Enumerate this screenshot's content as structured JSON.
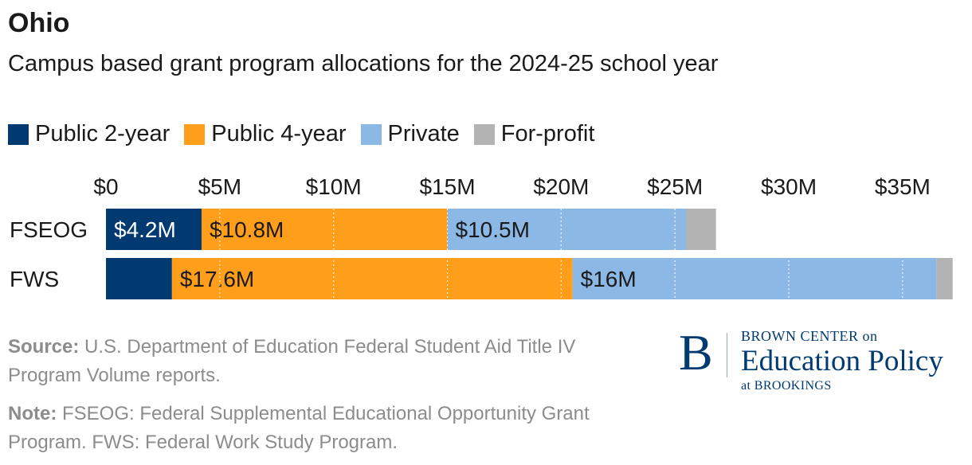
{
  "header": {
    "title": "Ohio",
    "subtitle": "Campus based grant program allocations for the 2024-25 school year"
  },
  "legend": {
    "items": [
      {
        "label": "Public 2-year",
        "color": "#003a70"
      },
      {
        "label": "Public 4-year",
        "color": "#ff9e1b"
      },
      {
        "label": "Private",
        "color": "#8cb8e6"
      },
      {
        "label": "For-profit",
        "color": "#b3b3b3"
      }
    ]
  },
  "chart_data": {
    "type": "bar",
    "orientation": "horizontal",
    "stacked": true,
    "title": "Ohio",
    "subtitle": "Campus based grant program allocations for the 2024-25 school year",
    "categories": [
      "FSEOG",
      "FWS"
    ],
    "series": [
      {
        "name": "Public 2-year",
        "color": "#003a70",
        "values": [
          4.2,
          2.9
        ],
        "labels": [
          "$4.2M",
          ""
        ],
        "label_color": "#ffffff"
      },
      {
        "name": "Public 4-year",
        "color": "#ff9e1b",
        "values": [
          10.8,
          17.6
        ],
        "labels": [
          "$10.8M",
          "$17.6M"
        ],
        "label_color": "#1a1a1a"
      },
      {
        "name": "Private",
        "color": "#8cb8e6",
        "values": [
          10.5,
          16.0
        ],
        "labels": [
          "$10.5M",
          "$16M"
        ],
        "label_color": "#1a1a1a"
      },
      {
        "name": "For-profit",
        "color": "#b3b3b3",
        "values": [
          1.3,
          0.7
        ],
        "labels": [
          "",
          ""
        ],
        "label_color": "#1a1a1a"
      }
    ],
    "xlim": [
      0,
      37
    ],
    "x_ticks": [
      0,
      5,
      10,
      15,
      20,
      25,
      30,
      35
    ],
    "x_tick_labels": [
      "$0",
      "$5M",
      "$10M",
      "$15M",
      "$20M",
      "$25M",
      "$30M",
      "$35M"
    ],
    "xlabel": "",
    "ylabel": "",
    "grid": true,
    "legend_position": "top-left"
  },
  "footer": {
    "source_label": "Source:",
    "source_text": " U.S. Department of Education Federal Student Aid Title IV Program Volume reports.",
    "note_label": "Note:",
    "note_text": " FSEOG: Federal Supplemental Educational Opportunity Grant Program. FWS: Federal Work Study Program."
  },
  "logo": {
    "initial": "B",
    "line1": "BROWN CENTER on",
    "line2": "Education Policy",
    "line3": "at BROOKINGS"
  }
}
